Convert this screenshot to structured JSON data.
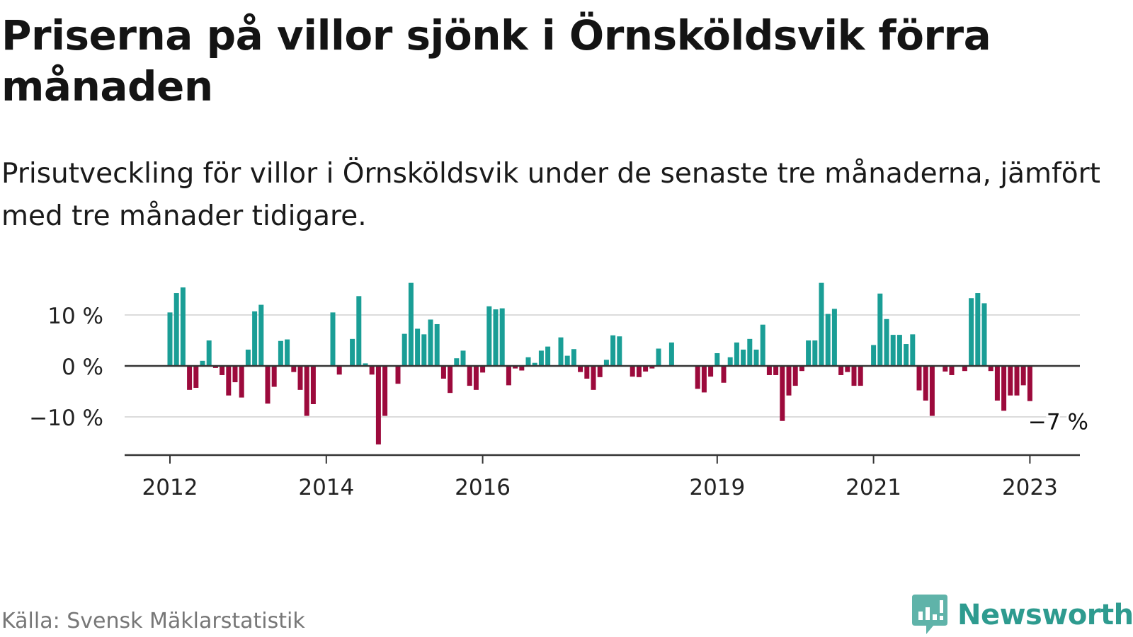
{
  "title": "Priserna på villor sjönk i Örnsköldsvik förra månaden",
  "subtitle": "Prisutveckling för villor i Örnsköldsvik under de senaste tre månaderna, jämfört med tre månader tidigare.",
  "source": "Källa: Svensk Mäklarstatistik",
  "brand": "Newsworthy",
  "colors": {
    "positive": "#1a9e96",
    "negative": "#9c0a3c",
    "grid": "#dcdcdc",
    "axis": "#333333",
    "brand": "#2e9b8f"
  },
  "chart_data": {
    "type": "bar",
    "ylim": [
      -17,
      19
    ],
    "yticks": [
      {
        "value": 10,
        "label": "10 %"
      },
      {
        "value": 0,
        "label": "0 %"
      },
      {
        "value": -10,
        "label": "−10 %"
      }
    ],
    "xticks": [
      {
        "index": 0,
        "label": "2012"
      },
      {
        "index": 24,
        "label": "2014"
      },
      {
        "index": 48,
        "label": "2016"
      },
      {
        "index": 84,
        "label": "2019"
      },
      {
        "index": 108,
        "label": "2021"
      },
      {
        "index": 132,
        "label": "2023"
      }
    ],
    "last_label": "−7 %",
    "values": [
      10.5,
      14.3,
      15.4,
      -4.7,
      -4.3,
      1.0,
      5.0,
      -0.4,
      -1.8,
      -5.8,
      -3.2,
      -6.2,
      3.2,
      10.7,
      12.0,
      -7.4,
      -4.1,
      4.9,
      5.2,
      -1.2,
      -4.7,
      -9.8,
      -7.5,
      0,
      0,
      10.5,
      -1.7,
      0,
      5.3,
      13.7,
      0.5,
      -1.7,
      -15.4,
      -9.8,
      0,
      -3.5,
      6.3,
      16.3,
      7.3,
      6.2,
      9.1,
      8.2,
      -2.5,
      -5.3,
      1.5,
      3.0,
      -3.9,
      -4.7,
      -1.3,
      11.7,
      11.1,
      11.3,
      -3.8,
      -0.5,
      -0.9,
      1.7,
      0.6,
      3.0,
      3.8,
      0,
      5.6,
      2.0,
      3.3,
      -1.2,
      -2.5,
      -4.7,
      -2.2,
      1.2,
      6.0,
      5.8,
      0,
      -2.1,
      -2.2,
      -1.1,
      -0.5,
      3.4,
      0,
      4.6,
      0,
      0,
      0,
      -4.5,
      -5.2,
      -2.1,
      2.5,
      -3.3,
      1.7,
      4.6,
      3.2,
      5.3,
      3.2,
      8.1,
      -1.8,
      -1.8,
      -10.8,
      -5.8,
      -3.9,
      -1.0,
      5.0,
      5.0,
      16.3,
      10.2,
      11.2,
      -1.8,
      -1.2,
      -3.9,
      -3.9,
      0,
      4.1,
      14.2,
      9.2,
      6.1,
      6.1,
      4.3,
      6.2,
      -4.8,
      -6.8,
      -9.8,
      0,
      -1.1,
      -1.8,
      0,
      -1.0,
      13.3,
      14.3,
      12.3,
      -1.0,
      -6.8,
      -8.8,
      -5.8,
      -5.8,
      -3.8,
      -6.9
    ]
  }
}
